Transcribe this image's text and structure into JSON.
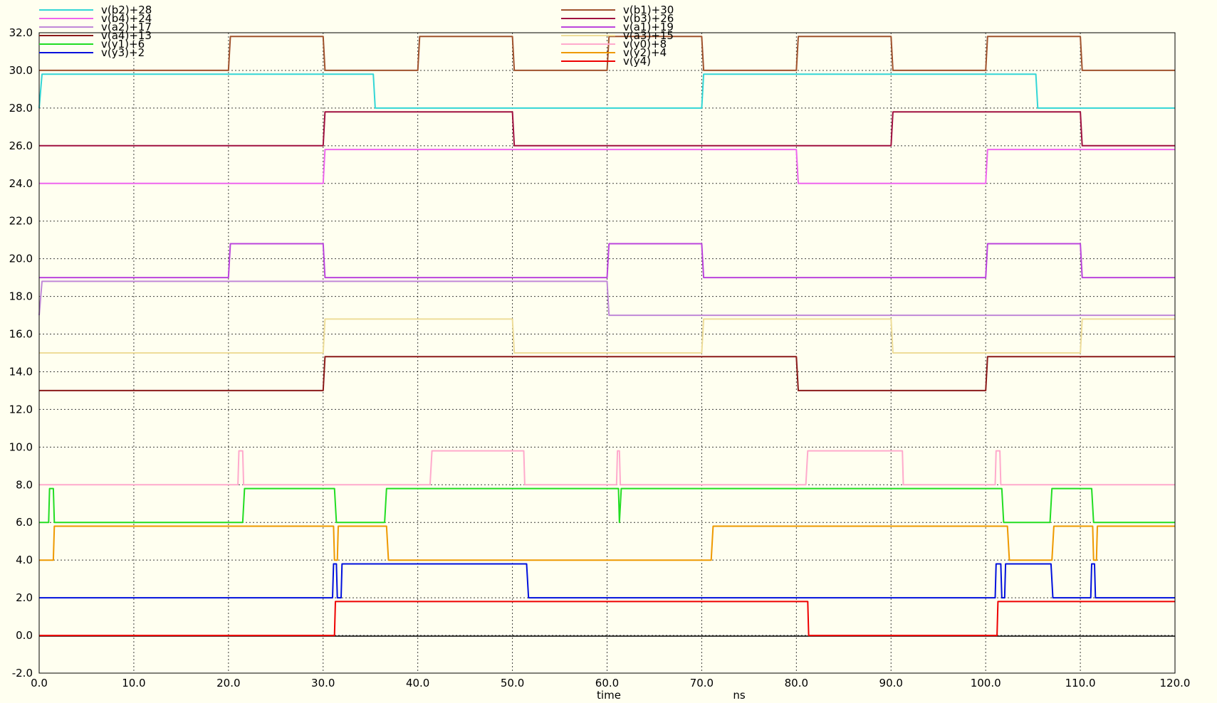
{
  "chart_data": {
    "type": "line",
    "xlabel": "time",
    "xunit": "ns",
    "xlim": [
      0,
      120
    ],
    "ylim": [
      -2,
      32
    ],
    "x_ticks": [
      "0.0",
      "10.0",
      "20.0",
      "30.0",
      "40.0",
      "50.0",
      "60.0",
      "70.0",
      "80.0",
      "90.0",
      "100.0",
      "110.0",
      "120.0"
    ],
    "y_ticks": [
      "-2.0",
      "0.0",
      "2.0",
      "4.0",
      "6.0",
      "8.0",
      "10.0",
      "12.0",
      "14.0",
      "16.0",
      "18.0",
      "20.0",
      "22.0",
      "24.0",
      "26.0",
      "28.0",
      "30.0",
      "32.0"
    ],
    "grid": true,
    "legend_placement": "top",
    "series": [
      {
        "name": "v(b2)+28",
        "color": "#33d6d6",
        "column": 0,
        "points": [
          [
            0,
            28
          ],
          [
            0.3,
            29.8
          ],
          [
            35.3,
            29.8
          ],
          [
            35.5,
            28
          ],
          [
            70,
            28
          ],
          [
            70.2,
            29.8
          ],
          [
            105.3,
            29.8
          ],
          [
            105.5,
            28
          ],
          [
            120,
            28
          ]
        ]
      },
      {
        "name": "v(b4)+24",
        "color": "#ee66ee",
        "column": 0,
        "points": [
          [
            0,
            24
          ],
          [
            30,
            24
          ],
          [
            30.2,
            25.8
          ],
          [
            80,
            25.8
          ],
          [
            80.2,
            24
          ],
          [
            100,
            24
          ],
          [
            100.2,
            25.8
          ],
          [
            120,
            25.8
          ]
        ]
      },
      {
        "name": "v(a2)+17",
        "color": "#c088d8",
        "column": 0,
        "points": [
          [
            0,
            17
          ],
          [
            0.3,
            18.8
          ],
          [
            60,
            18.8
          ],
          [
            60.2,
            17
          ],
          [
            120,
            17
          ]
        ]
      },
      {
        "name": "v(a4)+13",
        "color": "#8b1a1a",
        "column": 0,
        "points": [
          [
            0,
            13
          ],
          [
            30,
            13
          ],
          [
            30.2,
            14.8
          ],
          [
            80,
            14.8
          ],
          [
            80.2,
            13
          ],
          [
            100,
            13
          ],
          [
            100.2,
            14.8
          ],
          [
            120,
            14.8
          ]
        ]
      },
      {
        "name": "v(y1)+6",
        "color": "#22dd22",
        "column": 0,
        "points": [
          [
            0,
            6
          ],
          [
            1,
            6
          ],
          [
            1.1,
            7.8
          ],
          [
            1.5,
            7.8
          ],
          [
            1.6,
            6
          ],
          [
            21.5,
            6
          ],
          [
            21.7,
            7.8
          ],
          [
            31.2,
            7.8
          ],
          [
            31.4,
            6
          ],
          [
            36.5,
            6
          ],
          [
            36.7,
            7.8
          ],
          [
            61.2,
            7.8
          ],
          [
            61.3,
            6
          ],
          [
            61.5,
            7.8
          ],
          [
            101.7,
            7.8
          ],
          [
            101.9,
            6
          ],
          [
            106.8,
            6
          ],
          [
            107,
            7.8
          ],
          [
            111.2,
            7.8
          ],
          [
            111.4,
            6
          ],
          [
            120,
            6
          ]
        ]
      },
      {
        "name": "v(y3)+2",
        "color": "#0010dd",
        "column": 0,
        "points": [
          [
            0,
            2
          ],
          [
            31,
            2
          ],
          [
            31.1,
            3.8
          ],
          [
            31.4,
            3.8
          ],
          [
            31.5,
            2
          ],
          [
            31.9,
            2
          ],
          [
            32,
            3.8
          ],
          [
            51.5,
            3.8
          ],
          [
            51.7,
            2
          ],
          [
            101,
            2
          ],
          [
            101.1,
            3.8
          ],
          [
            101.6,
            3.8
          ],
          [
            101.7,
            2
          ],
          [
            102,
            2
          ],
          [
            102.1,
            3.8
          ],
          [
            106.9,
            3.8
          ],
          [
            107.1,
            2
          ],
          [
            111.1,
            2
          ],
          [
            111.2,
            3.8
          ],
          [
            111.5,
            3.8
          ],
          [
            111.6,
            2
          ],
          [
            120,
            2
          ]
        ]
      },
      {
        "name": "v(b1)+30",
        "color": "#a0522d",
        "column": 1,
        "points": [
          [
            0,
            30
          ],
          [
            20,
            30
          ],
          [
            20.2,
            31.8
          ],
          [
            30,
            31.8
          ],
          [
            30.2,
            30
          ],
          [
            40,
            30
          ],
          [
            40.2,
            31.8
          ],
          [
            50,
            31.8
          ],
          [
            50.2,
            30
          ],
          [
            60,
            30
          ],
          [
            60.2,
            31.8
          ],
          [
            70,
            31.8
          ],
          [
            70.2,
            30
          ],
          [
            80,
            30
          ],
          [
            80.2,
            31.8
          ],
          [
            90,
            31.8
          ],
          [
            90.2,
            30
          ],
          [
            100,
            30
          ],
          [
            100.2,
            31.8
          ],
          [
            110,
            31.8
          ],
          [
            110.2,
            30
          ],
          [
            120,
            30
          ]
        ]
      },
      {
        "name": "v(b3)+26",
        "color": "#a01040",
        "column": 1,
        "points": [
          [
            0,
            26
          ],
          [
            30,
            26
          ],
          [
            30.2,
            27.8
          ],
          [
            50,
            27.8
          ],
          [
            50.2,
            26
          ],
          [
            90,
            26
          ],
          [
            90.2,
            27.8
          ],
          [
            110,
            27.8
          ],
          [
            110.2,
            26
          ],
          [
            120,
            26
          ]
        ]
      },
      {
        "name": "v(a1)+19",
        "color": "#bb44dd",
        "column": 1,
        "points": [
          [
            0,
            19
          ],
          [
            20,
            19
          ],
          [
            20.2,
            20.8
          ],
          [
            30,
            20.8
          ],
          [
            30.2,
            19
          ],
          [
            60,
            19
          ],
          [
            60.2,
            20.8
          ],
          [
            70,
            20.8
          ],
          [
            70.2,
            19
          ],
          [
            100,
            19
          ],
          [
            100.2,
            20.8
          ],
          [
            110,
            20.8
          ],
          [
            110.2,
            19
          ],
          [
            120,
            19
          ]
        ]
      },
      {
        "name": "v(a3)+15",
        "color": "#eedd99",
        "column": 1,
        "points": [
          [
            0,
            15
          ],
          [
            30,
            15
          ],
          [
            30.2,
            16.8
          ],
          [
            50,
            16.8
          ],
          [
            50.2,
            15
          ],
          [
            70,
            15
          ],
          [
            70.2,
            16.8
          ],
          [
            90,
            16.8
          ],
          [
            90.2,
            15
          ],
          [
            110,
            15
          ],
          [
            110.2,
            16.8
          ],
          [
            120,
            16.8
          ]
        ]
      },
      {
        "name": "v(y0)+8",
        "color": "#ffaacc",
        "column": 1,
        "points": [
          [
            0,
            8
          ],
          [
            21,
            8
          ],
          [
            21.1,
            9.8
          ],
          [
            21.5,
            9.8
          ],
          [
            21.6,
            8
          ],
          [
            41.3,
            8
          ],
          [
            41.5,
            9.8
          ],
          [
            51.2,
            9.8
          ],
          [
            51.3,
            8
          ],
          [
            61,
            8
          ],
          [
            61.1,
            9.8
          ],
          [
            61.3,
            9.8
          ],
          [
            61.4,
            8
          ],
          [
            81,
            8
          ],
          [
            81.2,
            9.8
          ],
          [
            91.2,
            9.8
          ],
          [
            91.3,
            8
          ],
          [
            101,
            8
          ],
          [
            101.1,
            9.8
          ],
          [
            101.5,
            9.8
          ],
          [
            101.6,
            8
          ],
          [
            120,
            8
          ]
        ]
      },
      {
        "name": "v(y2)+4",
        "color": "#ee9900",
        "column": 1,
        "points": [
          [
            0,
            4
          ],
          [
            1.5,
            4
          ],
          [
            1.6,
            5.8
          ],
          [
            31.1,
            5.8
          ],
          [
            31.2,
            4
          ],
          [
            31.5,
            4
          ],
          [
            31.6,
            5.8
          ],
          [
            36.7,
            5.8
          ],
          [
            36.9,
            4
          ],
          [
            71,
            4
          ],
          [
            71.2,
            5.8
          ],
          [
            102.3,
            5.8
          ],
          [
            102.5,
            4
          ],
          [
            107,
            4
          ],
          [
            107.2,
            5.8
          ],
          [
            111.3,
            5.8
          ],
          [
            111.4,
            4
          ],
          [
            111.7,
            4
          ],
          [
            111.8,
            5.8
          ],
          [
            120,
            5.8
          ]
        ]
      },
      {
        "name": "v(y4)",
        "color": "#ee0000",
        "column": 1,
        "points": [
          [
            0,
            0
          ],
          [
            31.2,
            0
          ],
          [
            31.3,
            1.8
          ],
          [
            81.2,
            1.8
          ],
          [
            81.3,
            0
          ],
          [
            101.2,
            0
          ],
          [
            101.3,
            1.8
          ],
          [
            120,
            1.8
          ]
        ]
      }
    ]
  }
}
